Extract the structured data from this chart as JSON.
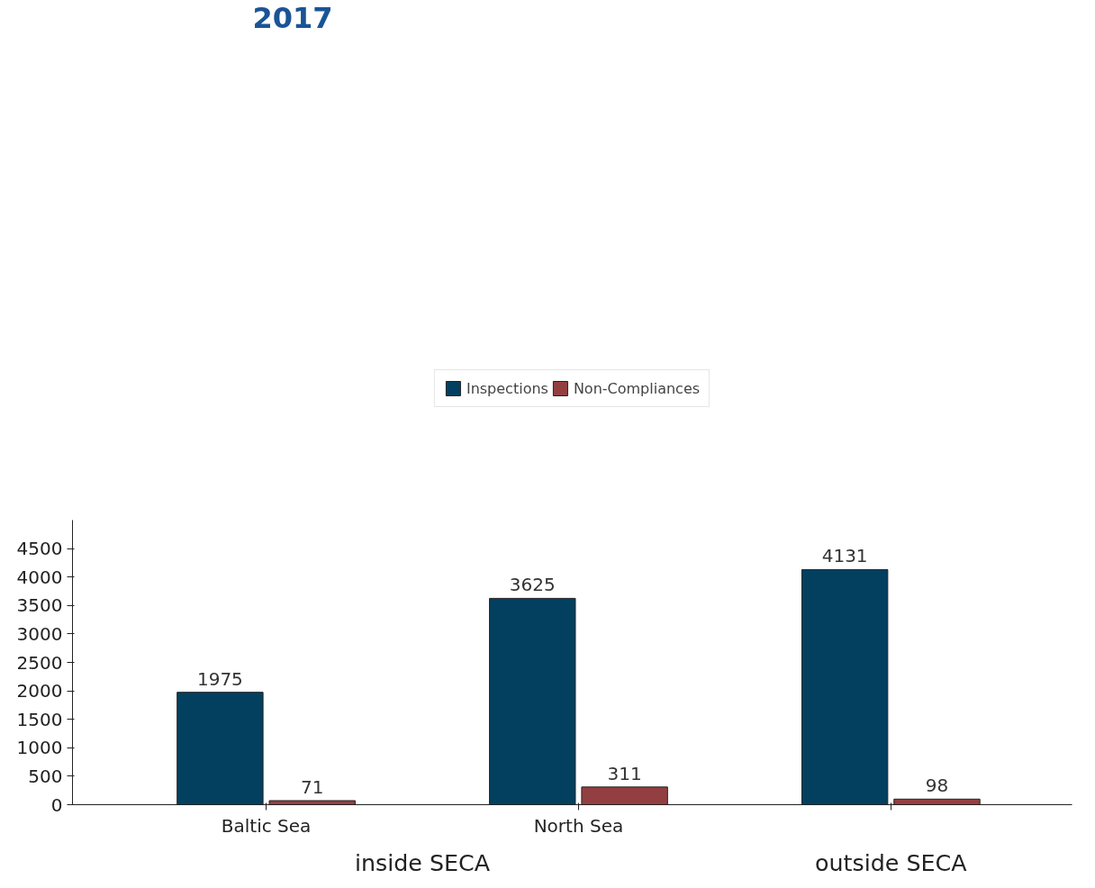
{
  "chart_data": {
    "type": "bar",
    "title": "2017",
    "categories": [
      "Baltic Sea",
      "North Sea",
      null
    ],
    "series": [
      {
        "name": "Inspections",
        "color": "#03405f",
        "values": [
          1975,
          3625,
          4131
        ]
      },
      {
        "name": "Non-Compliances",
        "color": "#933f42",
        "values": [
          71,
          311,
          98
        ]
      }
    ],
    "ylim": [
      0,
      5000
    ],
    "yticks": [
      0,
      500,
      1000,
      1500,
      2000,
      2500,
      3000,
      3500,
      4000,
      4500
    ],
    "grid": false,
    "legend": "top",
    "data_labels": true,
    "annotations": [
      "inside SECA",
      "outside SECA"
    ]
  }
}
